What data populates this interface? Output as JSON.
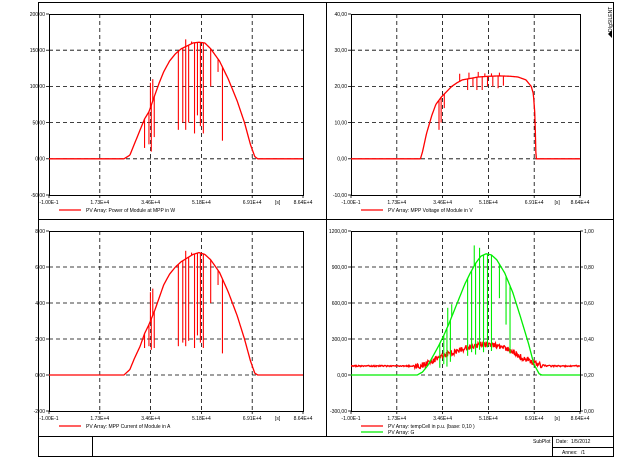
{
  "footer": {
    "subplot_label": "SubPlot",
    "date_label": "Date:",
    "date_value": "1/5/2012",
    "annex_label": "Annex:",
    "annex_value": "/1"
  },
  "watermark": "DIgSILENT",
  "chart_data": [
    {
      "type": "line",
      "xlim": [
        -0.1,
        86400
      ],
      "ylim": [
        -50,
        200
      ],
      "x_ticks": [
        "-1.00E-1",
        "1.73E+4",
        "3.46E+4",
        "5.18E+4",
        "6.91E+4",
        "8.64E+4"
      ],
      "x_unit": "[s]",
      "y_ticks": [
        "-50,00",
        "0,00",
        "50,00",
        "100,00",
        "150,00",
        "200,00"
      ],
      "y_tick_values": [
        -50,
        0,
        50,
        100,
        150,
        200
      ],
      "grid": true,
      "series": [
        {
          "name": "PV Array: Power of Module at MPP in W",
          "color": "#ff0000",
          "points": [
            [
              0,
              0
            ],
            [
              25500,
              0
            ],
            [
              27500,
              5
            ],
            [
              29000,
              20
            ],
            [
              31000,
              40
            ],
            [
              32500,
              55
            ],
            [
              34000,
              65
            ],
            [
              36000,
              88
            ],
            [
              37500,
              105
            ],
            [
              39000,
              120
            ],
            [
              41000,
              135
            ],
            [
              43000,
              145
            ],
            [
              45000,
              152
            ],
            [
              47000,
              156
            ],
            [
              49000,
              160
            ],
            [
              51000,
              161
            ],
            [
              53000,
              160
            ],
            [
              55000,
              152
            ],
            [
              58000,
              135
            ],
            [
              61000,
              110
            ],
            [
              64000,
              80
            ],
            [
              66500,
              50
            ],
            [
              68500,
              20
            ],
            [
              70000,
              3
            ],
            [
              71000,
              0
            ],
            [
              86400,
              0
            ]
          ],
          "drops": [
            [
              32500,
              15
            ],
            [
              34000,
              20
            ],
            [
              34800,
              10
            ],
            [
              35800,
              30
            ],
            [
              44000,
              40
            ],
            [
              45500,
              50
            ],
            [
              46500,
              40
            ],
            [
              47500,
              50
            ],
            [
              49500,
              35
            ],
            [
              50500,
              60
            ],
            [
              51500,
              45
            ],
            [
              52500,
              35
            ],
            [
              55000,
              100
            ],
            [
              57500,
              120
            ],
            [
              59000,
              25
            ]
          ],
          "spikes": [
            [
              34500,
              105
            ],
            [
              35300,
              110
            ],
            [
              46500,
              165
            ],
            [
              48500,
              162
            ]
          ]
        }
      ]
    },
    {
      "type": "line",
      "xlim": [
        -0.1,
        86400
      ],
      "ylim": [
        -10,
        40
      ],
      "x_ticks": [
        "-1.00E-1",
        "1.73E+4",
        "3.46E+4",
        "5.18E+4",
        "6.91E+4",
        "8.64E+4"
      ],
      "x_unit": "[s]",
      "y_ticks": [
        "-10,00",
        "0,00",
        "10,00",
        "20,00",
        "30,00",
        "40,00"
      ],
      "y_tick_values": [
        -10,
        0,
        10,
        20,
        30,
        40
      ],
      "grid": true,
      "series": [
        {
          "name": "PV Array: MPP Voltage of Module in V",
          "color": "#ff0000",
          "points": [
            [
              0,
              0
            ],
            [
              26200,
              0
            ],
            [
              27000,
              2
            ],
            [
              28500,
              7
            ],
            [
              30500,
              12
            ],
            [
              32000,
              15
            ],
            [
              34000,
              17
            ],
            [
              36000,
              18.5
            ],
            [
              38000,
              20
            ],
            [
              40000,
              21
            ],
            [
              42000,
              21.8
            ],
            [
              45000,
              22.2
            ],
            [
              48000,
              22.6
            ],
            [
              52000,
              22.8
            ],
            [
              56000,
              22.9
            ],
            [
              60000,
              22.8
            ],
            [
              63000,
              22.6
            ],
            [
              66000,
              21.8
            ],
            [
              68000,
              20
            ],
            [
              68800,
              18
            ],
            [
              69400,
              12
            ],
            [
              69800,
              0
            ],
            [
              86400,
              0
            ]
          ],
          "drops": [
            [
              33200,
              8
            ],
            [
              34000,
              10
            ],
            [
              35200,
              14
            ],
            [
              44000,
              19
            ],
            [
              46000,
              20
            ],
            [
              47500,
              19
            ],
            [
              49500,
              19
            ],
            [
              51500,
              20
            ],
            [
              53500,
              20
            ],
            [
              55500,
              19.5
            ],
            [
              57500,
              20.2
            ]
          ],
          "spikes": [
            [
              41000,
              23.5
            ],
            [
              44500,
              23.8
            ],
            [
              48000,
              24
            ],
            [
              50500,
              23.6
            ],
            [
              53000,
              23.6
            ],
            [
              56000,
              23.8
            ]
          ]
        }
      ]
    },
    {
      "type": "line",
      "xlim": [
        -0.1,
        86400
      ],
      "ylim": [
        -2,
        8
      ],
      "x_ticks": [
        "-1.00E-1",
        "1.73E+4",
        "3.46E+4",
        "5.18E+4",
        "6.91E+4",
        "8.64E+4"
      ],
      "x_unit": "[s]",
      "y_ticks": [
        "-2,00",
        "0,00",
        "2,00",
        "4,00",
        "6,00",
        "8,00"
      ],
      "y_tick_values": [
        -2,
        0,
        2,
        4,
        6,
        8
      ],
      "grid": true,
      "series": [
        {
          "name": "PV Array: MPP Current of Module in A",
          "color": "#ff0000",
          "points": [
            [
              0,
              0
            ],
            [
              25500,
              0
            ],
            [
              27500,
              0.3
            ],
            [
              29000,
              0.9
            ],
            [
              31000,
              1.6
            ],
            [
              32500,
              2.3
            ],
            [
              34000,
              2.8
            ],
            [
              36000,
              3.6
            ],
            [
              37500,
              4.3
            ],
            [
              39000,
              5
            ],
            [
              41000,
              5.6
            ],
            [
              43000,
              6
            ],
            [
              45000,
              6.3
            ],
            [
              47000,
              6.5
            ],
            [
              49000,
              6.7
            ],
            [
              51000,
              6.8
            ],
            [
              53000,
              6.7
            ],
            [
              55000,
              6.4
            ],
            [
              58000,
              5.7
            ],
            [
              61000,
              4.6
            ],
            [
              64000,
              3.3
            ],
            [
              66500,
              2
            ],
            [
              68500,
              0.8
            ],
            [
              70000,
              0.1
            ],
            [
              71000,
              0
            ],
            [
              86400,
              0
            ]
          ],
          "drops": [
            [
              32500,
              1.5
            ],
            [
              34000,
              1.6
            ],
            [
              34800,
              1.4
            ],
            [
              35800,
              1.5
            ],
            [
              44000,
              1.6
            ],
            [
              45500,
              1.8
            ],
            [
              46500,
              1.6
            ],
            [
              47500,
              1.9
            ],
            [
              49500,
              1.5
            ],
            [
              50500,
              2.2
            ],
            [
              51500,
              1.8
            ],
            [
              52500,
              1.5
            ],
            [
              55000,
              4
            ],
            [
              57500,
              5
            ],
            [
              59000,
              1.2
            ]
          ],
          "spikes": [
            [
              34500,
              4.6
            ],
            [
              35300,
              4.8
            ],
            [
              46500,
              6.9
            ],
            [
              48500,
              6.8
            ]
          ]
        }
      ]
    },
    {
      "type": "line",
      "xlim": [
        -0.1,
        86400
      ],
      "ylim": [
        -300,
        1200
      ],
      "x_ticks": [
        "-1.00E-1",
        "1.73E+4",
        "3.46E+4",
        "5.18E+4",
        "6.91E+4",
        "8.64E+4"
      ],
      "x_unit": "[s]",
      "y_ticks": [
        "-300,00",
        "0,00",
        "300,00",
        "600,00",
        "900,00",
        "1200,00"
      ],
      "y_tick_values": [
        -300,
        0,
        300,
        600,
        900,
        1200
      ],
      "y2lim": [
        0,
        1
      ],
      "y2_ticks": [
        "0,00",
        "0,20",
        "0,40",
        "0,60",
        "0,80",
        "1,00"
      ],
      "y2_tick_values": [
        0,
        0.2,
        0.4,
        0.6,
        0.8,
        1
      ],
      "grid": true,
      "series": [
        {
          "name": "PV Array: tempCell in p.u. (base: 0,10 )",
          "color": "#ff0000",
          "axis": "right",
          "points": [
            [
              0,
              0.25
            ],
            [
              10000,
              0.25
            ],
            [
              20000,
              0.25
            ],
            [
              26000,
              0.25
            ],
            [
              28000,
              0.26
            ],
            [
              31000,
              0.28
            ],
            [
              34000,
              0.3
            ],
            [
              37000,
              0.32
            ],
            [
              40000,
              0.33
            ],
            [
              43000,
              0.35
            ],
            [
              46000,
              0.36
            ],
            [
              49000,
              0.37
            ],
            [
              52000,
              0.37
            ],
            [
              55000,
              0.36
            ],
            [
              58000,
              0.35
            ],
            [
              61000,
              0.33
            ],
            [
              64000,
              0.3
            ],
            [
              67000,
              0.28
            ],
            [
              70000,
              0.26
            ],
            [
              74000,
              0.25
            ],
            [
              80000,
              0.25
            ],
            [
              86400,
              0.25
            ]
          ],
          "noise": 0.02,
          "drops": [],
          "spikes": []
        },
        {
          "name": "PV Array: G",
          "color": "#00ee00",
          "axis": "left",
          "points": [
            [
              0,
              0
            ],
            [
              25000,
              0
            ],
            [
              27000,
              25
            ],
            [
              29000,
              80
            ],
            [
              31000,
              160
            ],
            [
              33000,
              240
            ],
            [
              35000,
              330
            ],
            [
              37000,
              430
            ],
            [
              39000,
              540
            ],
            [
              41000,
              650
            ],
            [
              43000,
              760
            ],
            [
              45000,
              850
            ],
            [
              47000,
              930
            ],
            [
              49000,
              990
            ],
            [
              51000,
              1010
            ],
            [
              53000,
              1000
            ],
            [
              55000,
              960
            ],
            [
              58000,
              850
            ],
            [
              61000,
              690
            ],
            [
              64000,
              480
            ],
            [
              67000,
              260
            ],
            [
              69000,
              90
            ],
            [
              71000,
              10
            ],
            [
              72000,
              0
            ],
            [
              86400,
              0
            ]
          ],
          "drops": [
            [
              33500,
              60
            ],
            [
              35000,
              90
            ],
            [
              36200,
              70
            ],
            [
              37500,
              110
            ],
            [
              44000,
              160
            ],
            [
              45500,
              190
            ],
            [
              47000,
              170
            ],
            [
              48500,
              210
            ],
            [
              50000,
              190
            ],
            [
              51500,
              230
            ],
            [
              53000,
              200
            ],
            [
              56000,
              640
            ],
            [
              58500,
              420
            ],
            [
              60000,
              180
            ]
          ],
          "spikes": [
            [
              36500,
              560
            ],
            [
              38000,
              590
            ],
            [
              46500,
              1080
            ],
            [
              48500,
              1060
            ]
          ]
        }
      ]
    }
  ]
}
